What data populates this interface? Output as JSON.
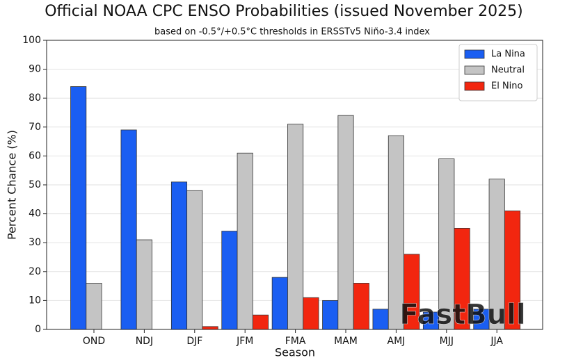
{
  "chart_data": {
    "type": "bar",
    "title": "Official NOAA CPC ENSO Probabilities (issued November 2025)",
    "subtitle": "based on -0.5°/+0.5°C thresholds in ERSSTv5 Niño-3.4 index",
    "x_label": "Season",
    "y_label": "Percent Chance (%)",
    "categories": [
      "OND",
      "NDJ",
      "DJF",
      "JFM",
      "FMA",
      "MAM",
      "AMJ",
      "MJJ",
      "JJA"
    ],
    "series": [
      {
        "name": "La Nina",
        "color": "#1a5ef2",
        "values": [
          84,
          69,
          51,
          34,
          18,
          10,
          7,
          6,
          7
        ]
      },
      {
        "name": "Neutral",
        "color": "#c4c4c4",
        "values": [
          16,
          31,
          48,
          61,
          71,
          74,
          67,
          59,
          52
        ]
      },
      {
        "name": "El Nino",
        "color": "#f2260f",
        "values": [
          0,
          0,
          1,
          5,
          11,
          16,
          26,
          35,
          41
        ]
      }
    ],
    "ylim": [
      0,
      100
    ],
    "yticks": [
      0,
      10,
      20,
      30,
      40,
      50,
      60,
      70,
      80,
      90,
      100
    ],
    "grid": true,
    "legend": "upper-right",
    "watermark": "FastBull"
  }
}
